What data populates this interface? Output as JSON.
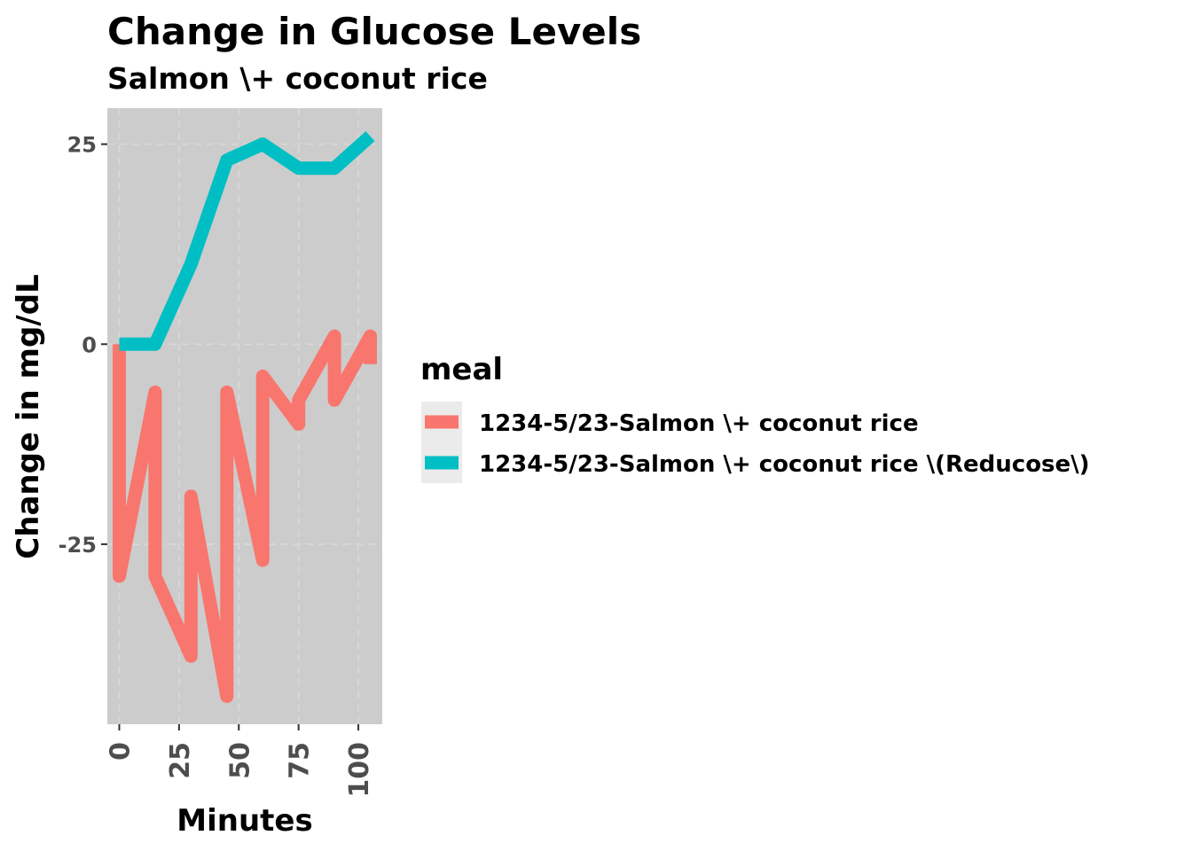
{
  "chart_data": {
    "type": "line",
    "title": "Change in Glucose Levels",
    "subtitle": "Salmon \\+ coconut rice",
    "xlabel": "Minutes",
    "ylabel": "Change in mg/dL",
    "xlim": [
      -5,
      110
    ],
    "ylim": [
      -47.5,
      29.5
    ],
    "x_ticks": [
      0,
      25,
      50,
      75,
      100
    ],
    "x_tick_labels": [
      "0",
      "25",
      "50",
      "75",
      "100"
    ],
    "y_ticks": [
      25,
      0,
      -25
    ],
    "y_tick_labels": [
      "25",
      "0",
      "-25"
    ],
    "legend_title": "meal",
    "legend_position": "right",
    "grid": true,
    "series": [
      {
        "name": "1234-5/23-Salmon \\+ coconut rice",
        "color": "#F8766D",
        "x": [
          0,
          0,
          15,
          15,
          30,
          30,
          45,
          45,
          60,
          60,
          75,
          75,
          90,
          90,
          105,
          105
        ],
        "y": [
          0,
          -29,
          -6,
          -29,
          -39,
          -19,
          -44,
          -6,
          -27,
          -4,
          -10,
          -7,
          1,
          -7,
          1,
          -2.5
        ]
      },
      {
        "name": "1234-5/23-Salmon \\+ coconut rice \\(Reducose\\)",
        "color": "#00BFC4",
        "x": [
          0,
          15,
          30,
          45,
          60,
          75,
          90,
          105
        ],
        "y": [
          0,
          0,
          10,
          23,
          25,
          22,
          22,
          26
        ]
      }
    ]
  }
}
